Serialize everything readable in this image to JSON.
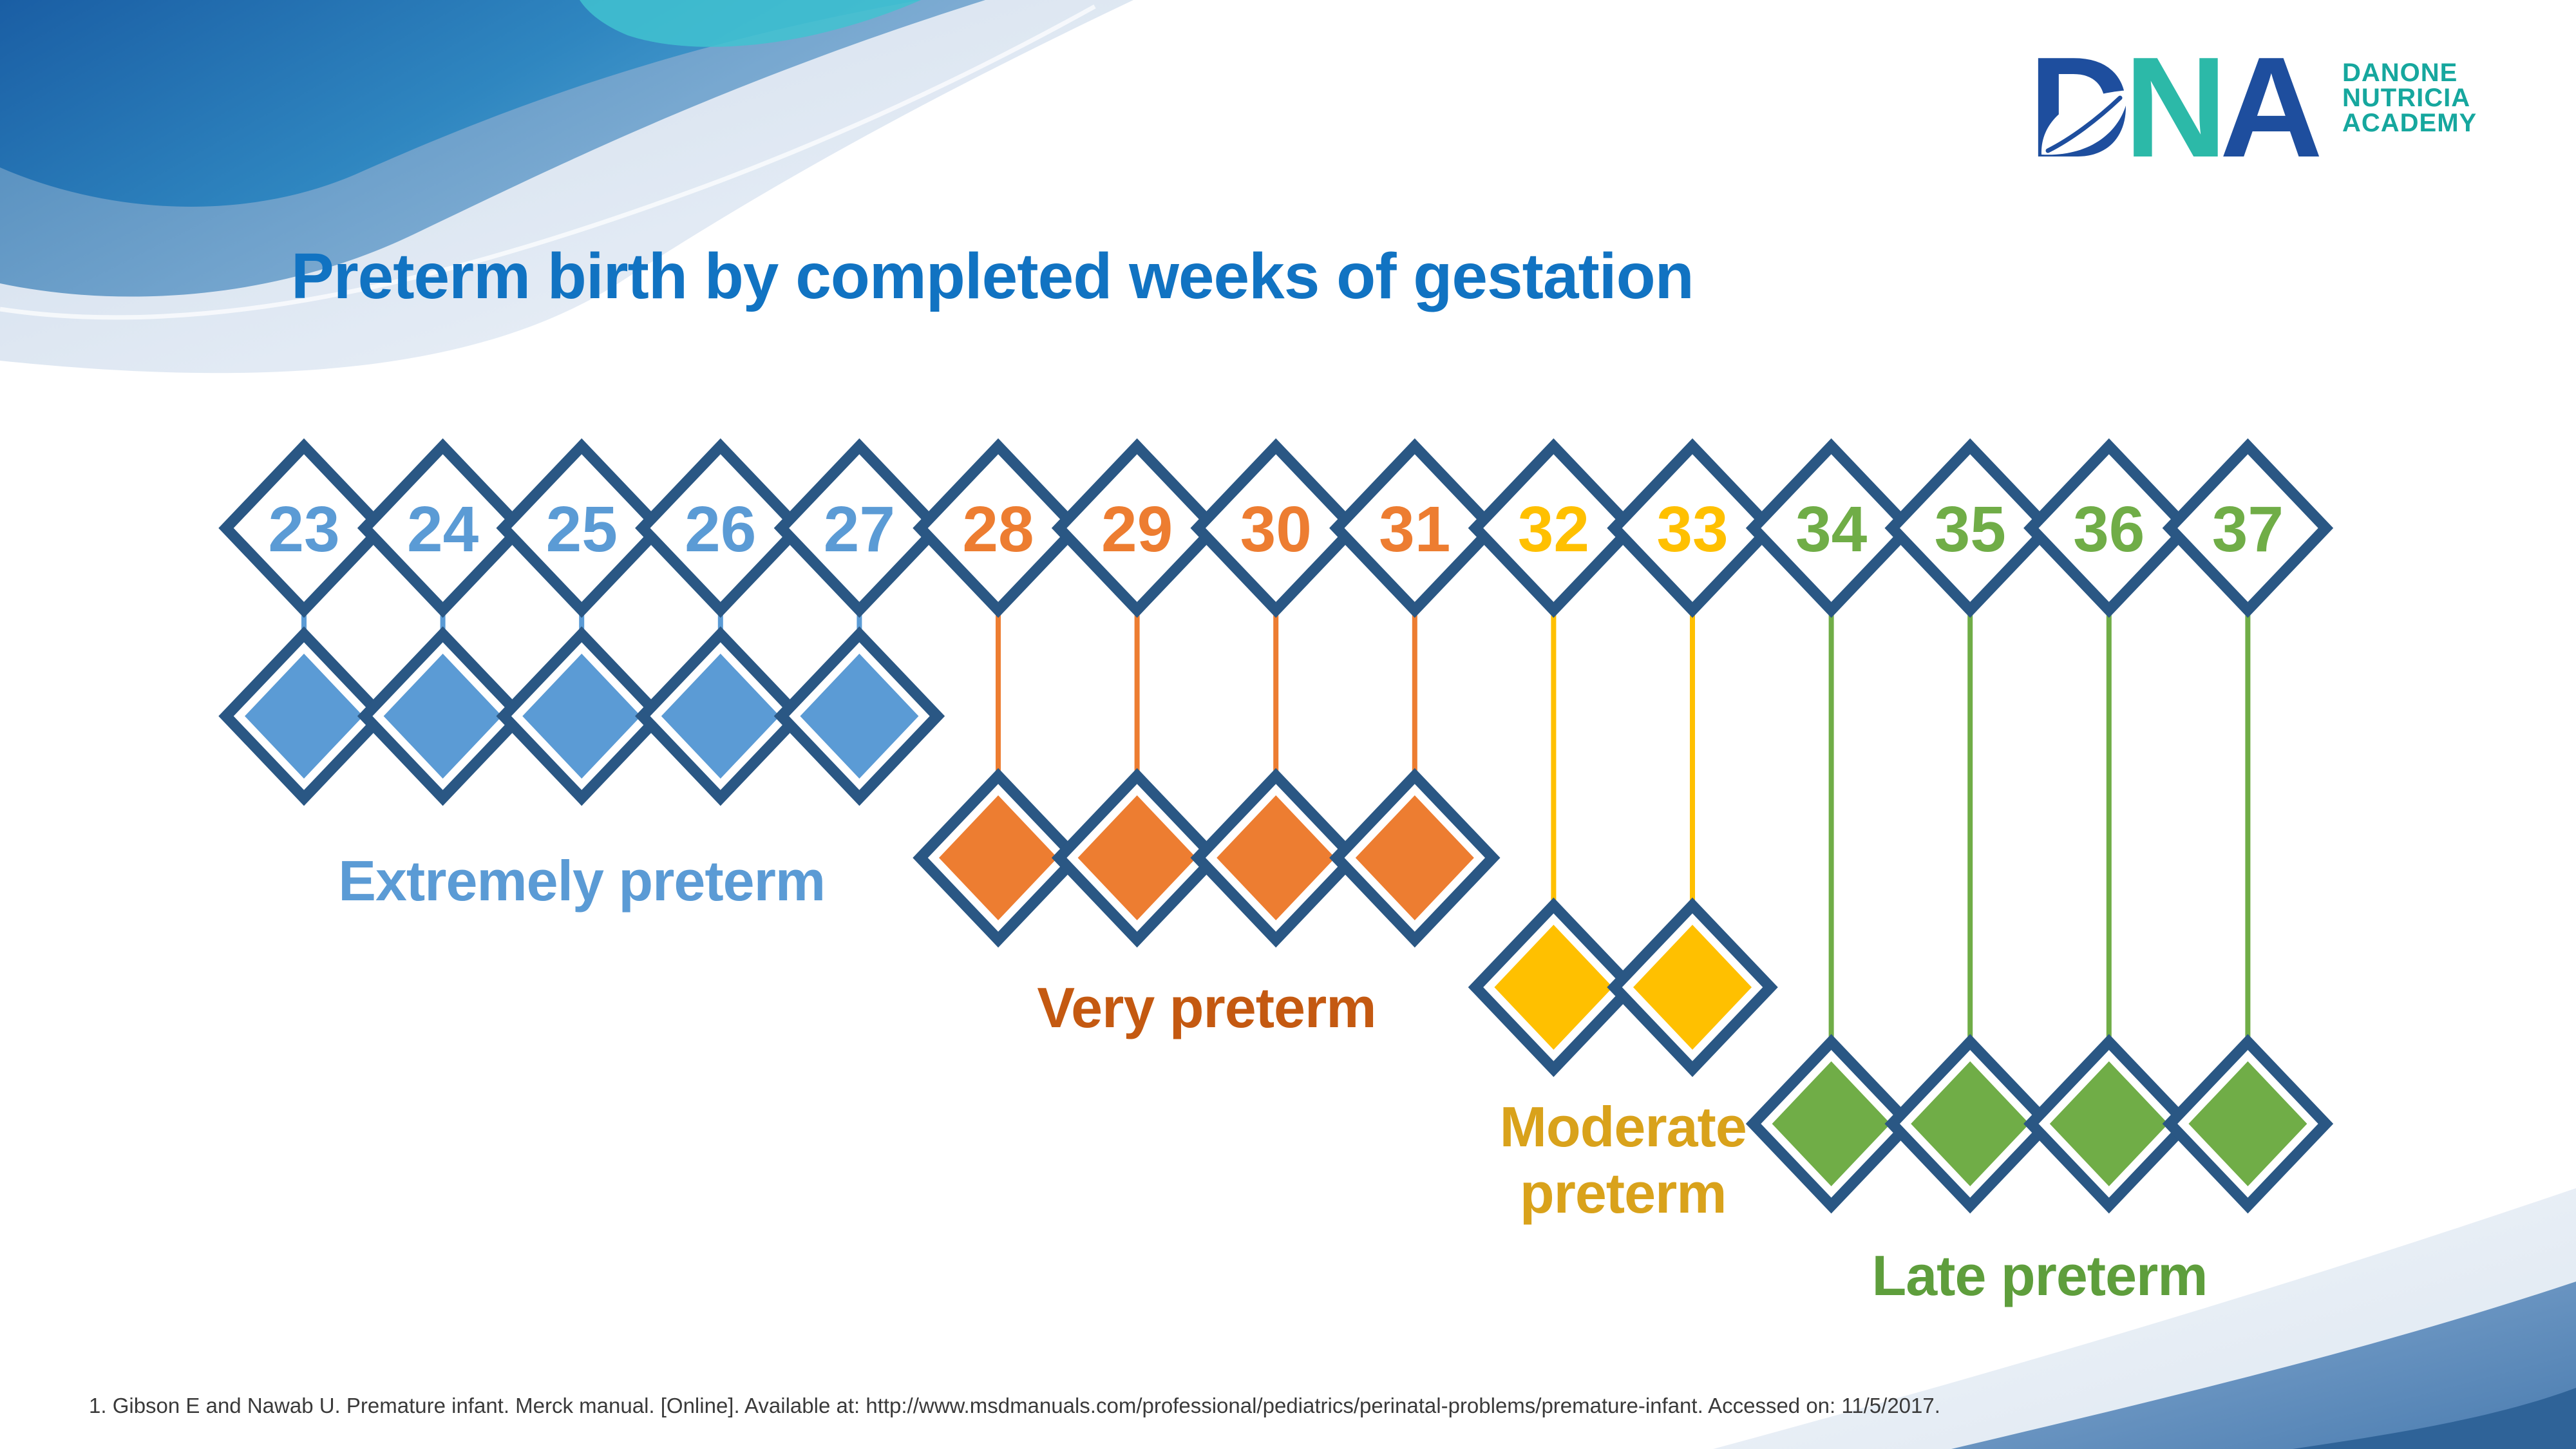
{
  "slide": {
    "title": "Preterm birth by completed weeks of gestation",
    "title_color": "#1173C2",
    "footer": "1. Gibson E and Nawab U. Premature infant. Merck manual. [Online]. Available at: http://www.msdmanuals.com/professional/pediatrics/perinatal-problems/premature-infant. Accessed on: 11/5/2017.",
    "footer_color": "#3a3a3a"
  },
  "logo": {
    "letters": [
      {
        "char": "D",
        "color": "#1E4E9E"
      },
      {
        "char": "N",
        "color": "#2CB9A8"
      },
      {
        "char": "A",
        "color": "#1E4E9E"
      }
    ],
    "words": [
      "DANONE",
      "NUTRICIA",
      "ACADEMY"
    ],
    "words_color": "#16A79E"
  },
  "chart_data": {
    "type": "diagram",
    "title": "Preterm birth by completed weeks of gestation",
    "unit": "completed weeks of gestation",
    "week_range": [
      23,
      37
    ],
    "outline_color": "#2A5784",
    "categories": [
      {
        "name": "Extremely preterm",
        "weeks": [
          23,
          24,
          25,
          26,
          27
        ],
        "color": "#5B9BD5",
        "label_color": "#5B9BD5"
      },
      {
        "name": "Very preterm",
        "weeks": [
          28,
          29,
          30,
          31
        ],
        "color": "#ED7D31",
        "label_color": "#C45911"
      },
      {
        "name": "Moderate preterm",
        "weeks": [
          32,
          33
        ],
        "color": "#FFC000",
        "label_color": "#D9A21B",
        "label_lines": [
          "Moderate",
          "preterm"
        ]
      },
      {
        "name": "Late preterm",
        "weeks": [
          34,
          35,
          36,
          37
        ],
        "color": "#70AD47",
        "label_color": "#5E9E3C"
      }
    ]
  }
}
